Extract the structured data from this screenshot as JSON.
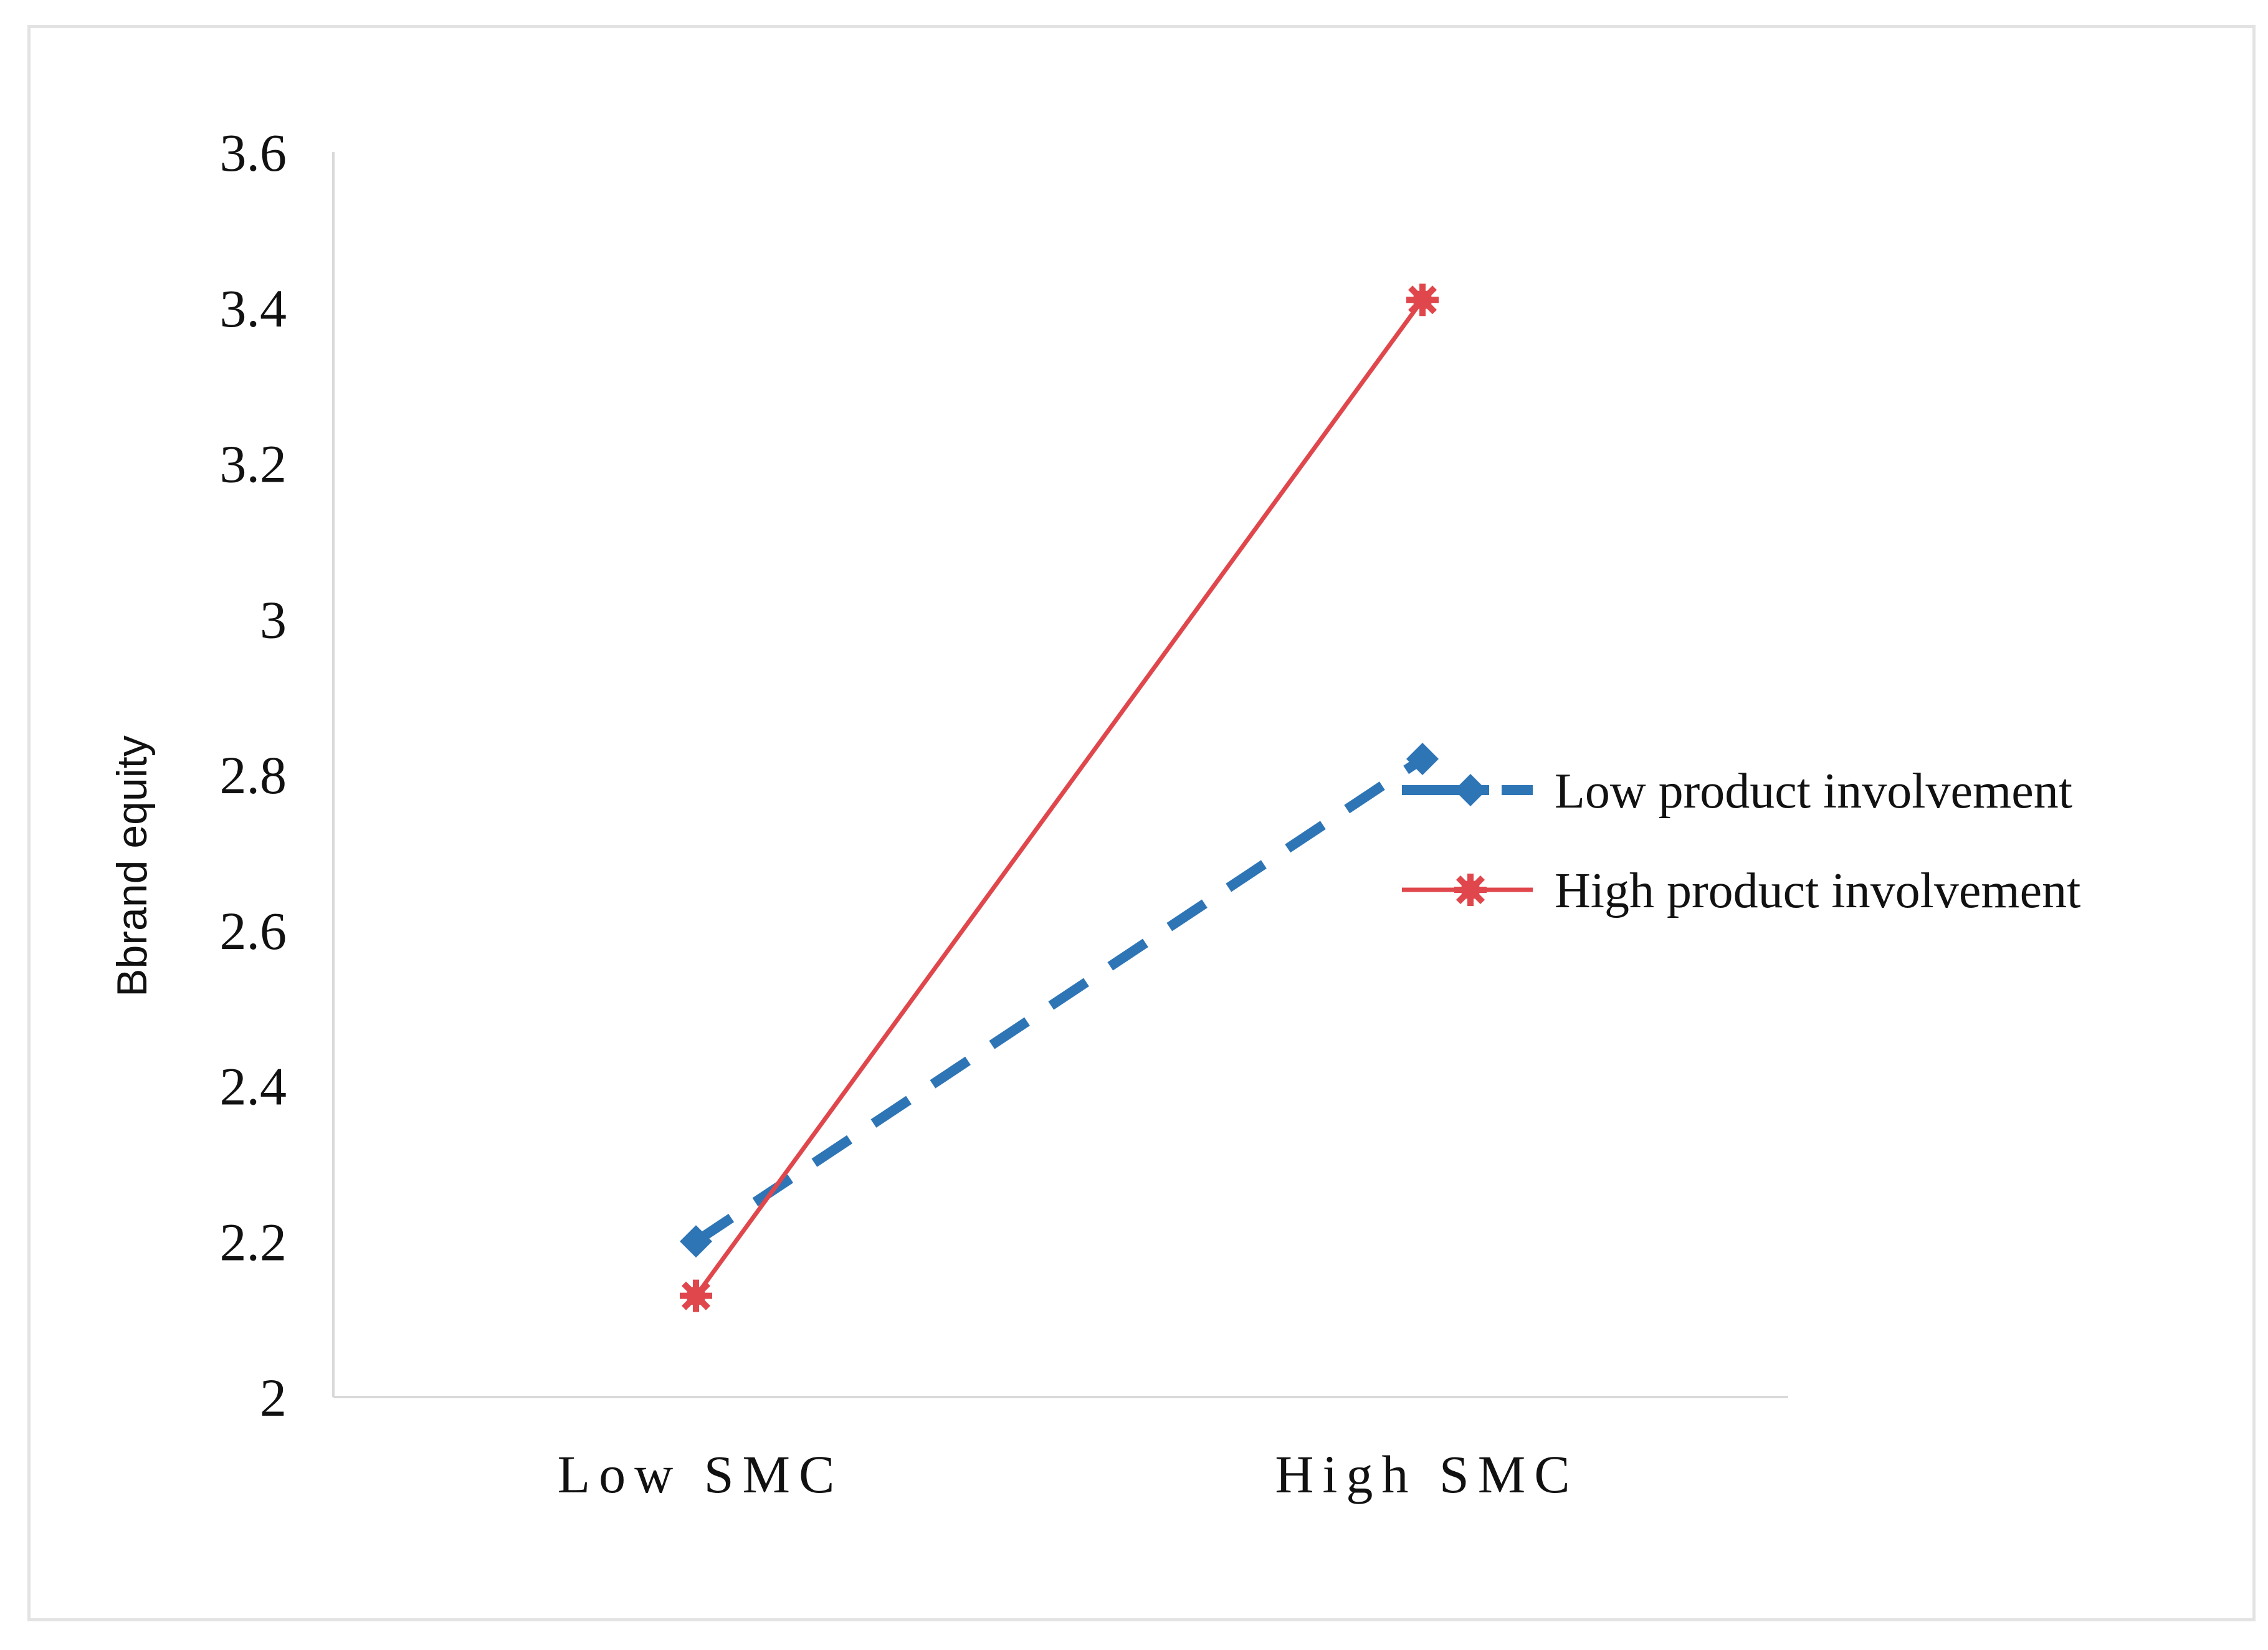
{
  "chart_data": {
    "type": "line",
    "title": "",
    "xlabel": "",
    "ylabel": "Bbrand equity",
    "categories": [
      "Low SMC",
      "High SMC"
    ],
    "ylim": [
      2,
      3.6
    ],
    "yticks": [
      "2",
      "2.2",
      "2.4",
      "2.6",
      "2.8",
      "3",
      "3.2",
      "3.4",
      "3.6"
    ],
    "grid": false,
    "legend_position": "right",
    "series": [
      {
        "name": "Low product involvement",
        "values": [
          2.2,
          2.82
        ],
        "color": "#2e75b6",
        "line_style": "dashed",
        "marker": "diamond"
      },
      {
        "name": "High product involvement",
        "values": [
          2.13,
          3.41
        ],
        "color": "#e0474c",
        "line_style": "solid",
        "marker": "asterisk"
      }
    ]
  }
}
